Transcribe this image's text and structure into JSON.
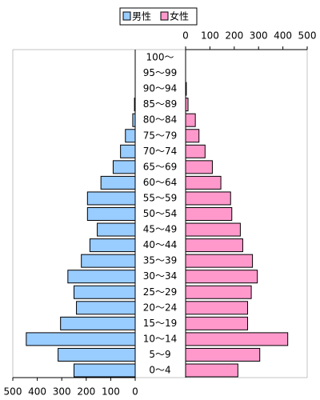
{
  "chart_data": {
    "type": "pyramid",
    "categories": [
      "0～4",
      "5～9",
      "10～14",
      "15～19",
      "20～24",
      "25～29",
      "30～34",
      "35～39",
      "40～44",
      "45～49",
      "50～54",
      "55～59",
      "60～64",
      "65～69",
      "70～74",
      "75～79",
      "80～84",
      "85～89",
      "90～94",
      "95～99",
      "100～"
    ],
    "series": [
      {
        "name": "男性",
        "color": "#99ccff",
        "values": [
          250,
          315,
          445,
          305,
          240,
          250,
          275,
          220,
          185,
          155,
          195,
          195,
          140,
          90,
          60,
          40,
          10,
          3,
          0,
          0,
          0
        ]
      },
      {
        "name": "女性",
        "color": "#ff99cc",
        "values": [
          215,
          305,
          420,
          255,
          255,
          270,
          295,
          275,
          235,
          225,
          190,
          185,
          145,
          110,
          80,
          55,
          40,
          10,
          3,
          0,
          0
        ]
      }
    ],
    "xlim": [
      0,
      500
    ],
    "xticks": [
      0,
      100,
      200,
      300,
      400,
      500
    ]
  }
}
